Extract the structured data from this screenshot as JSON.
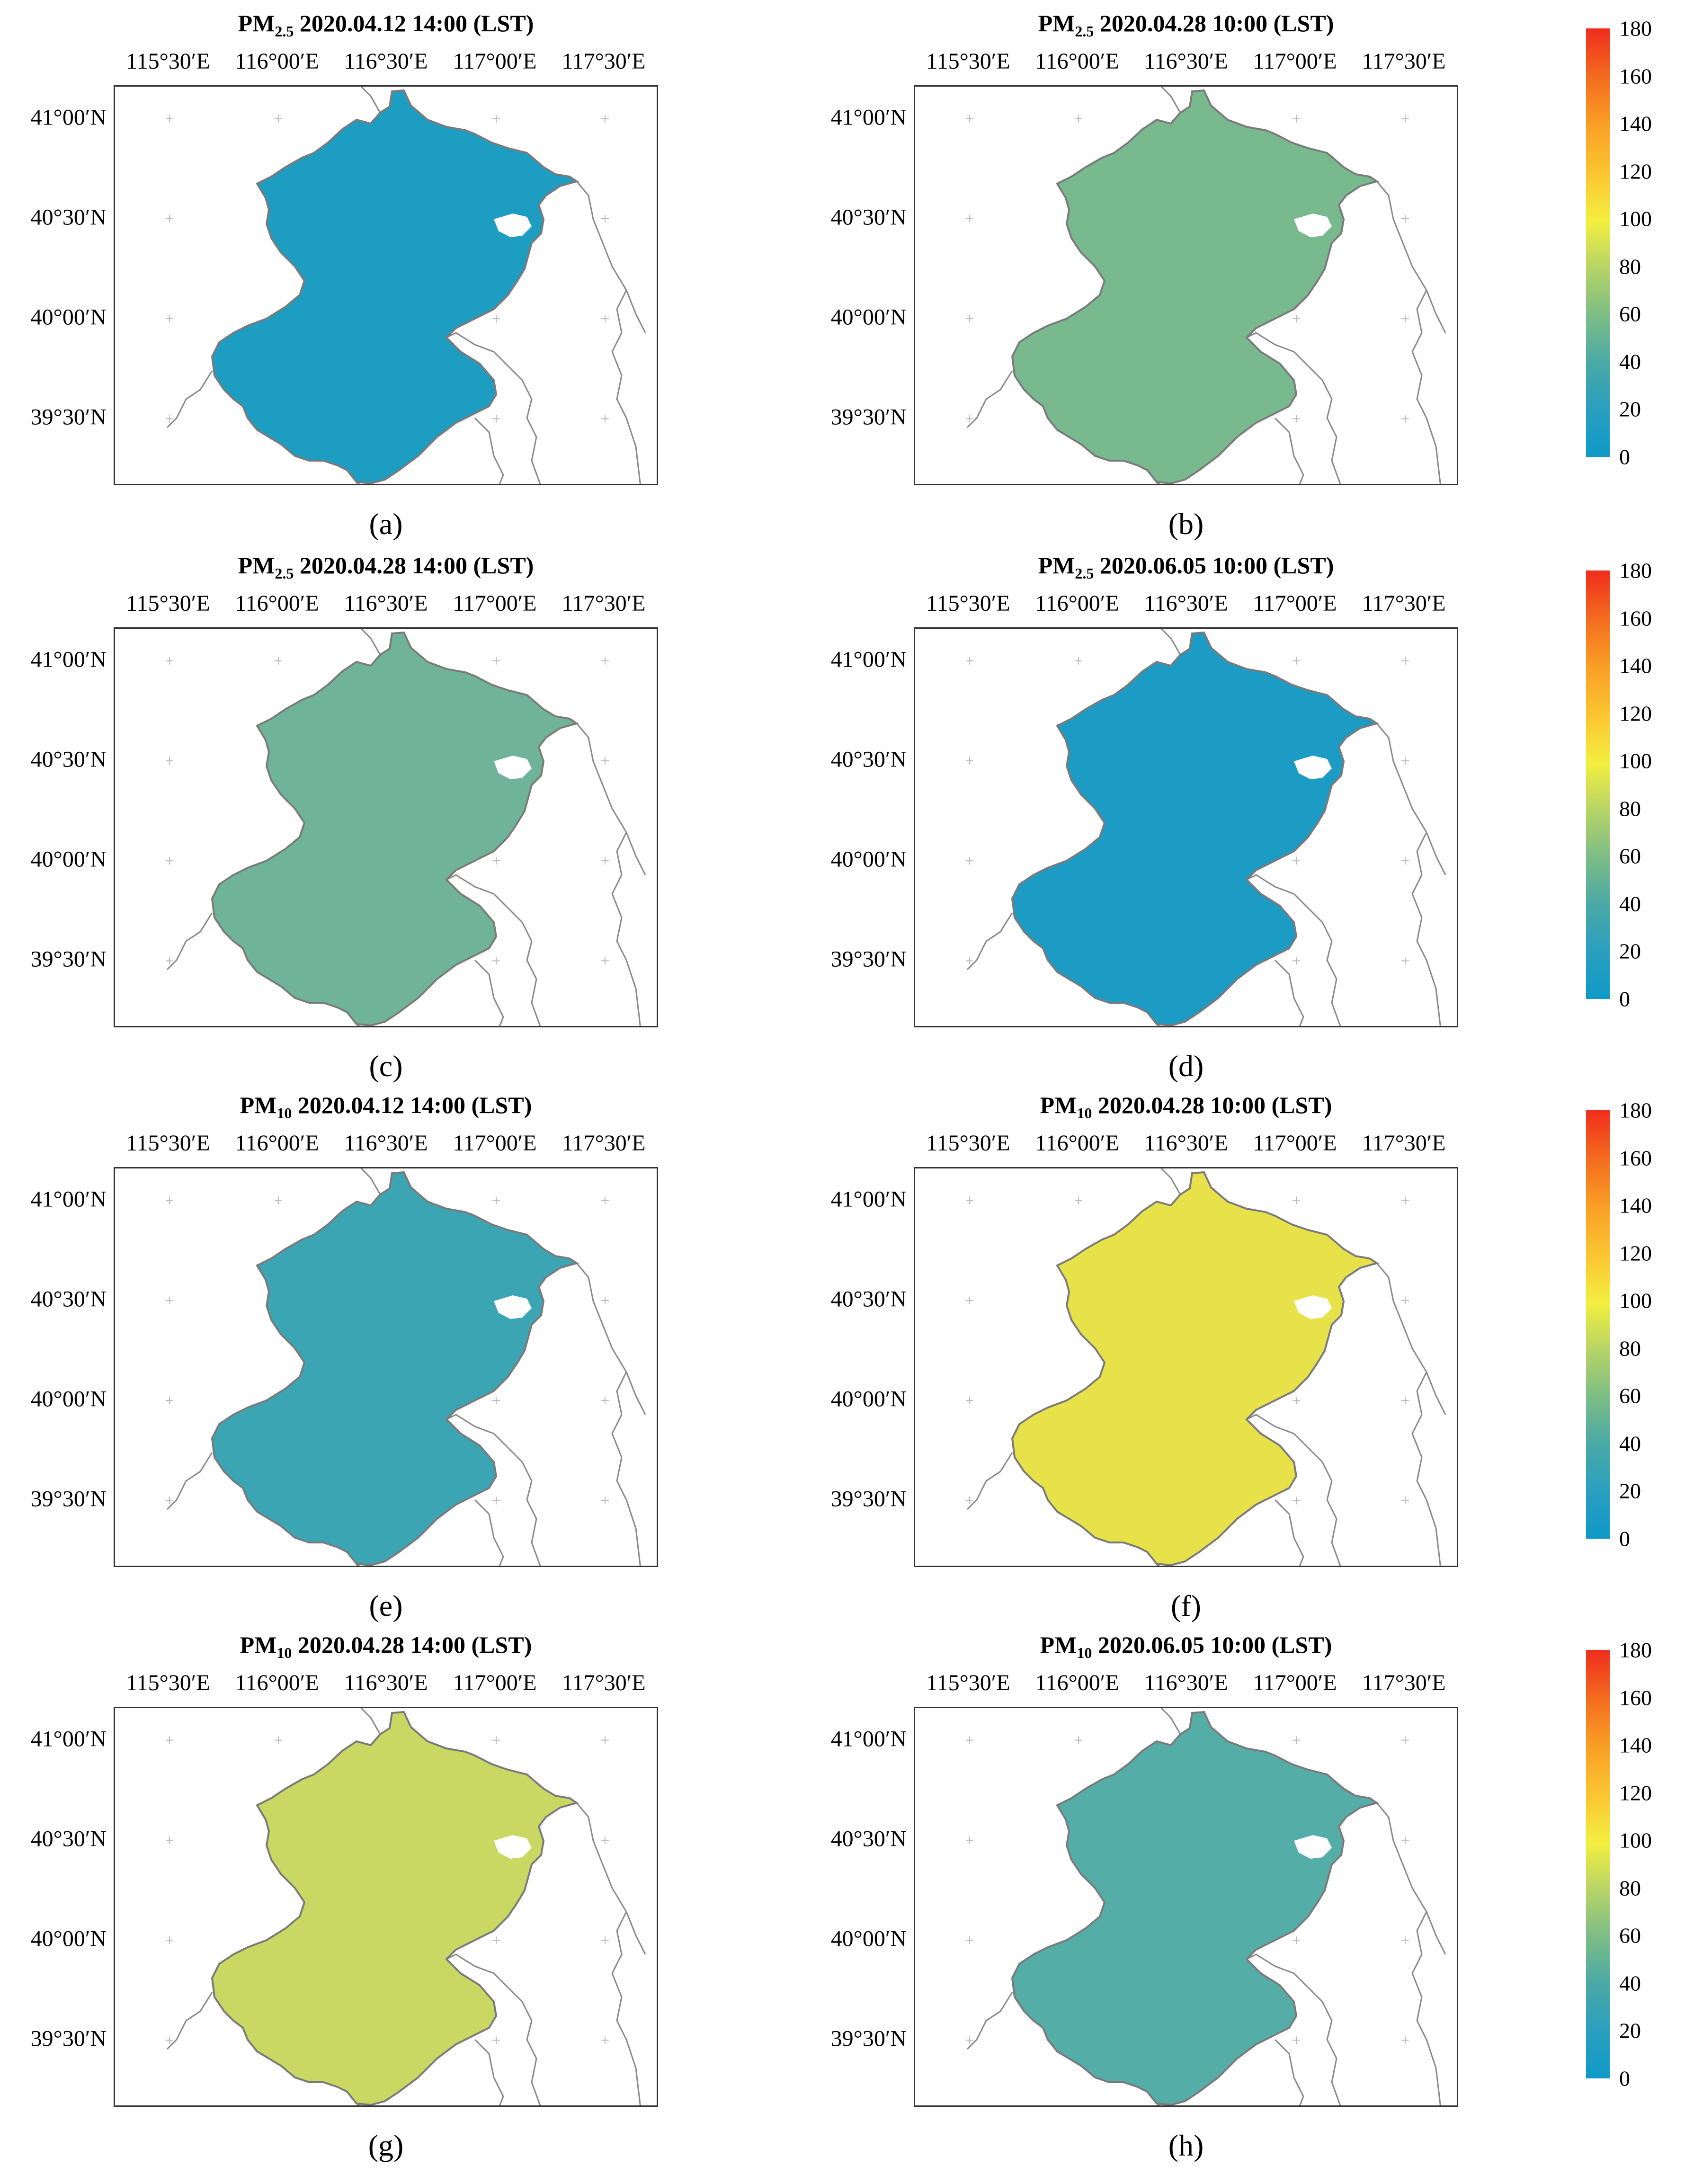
{
  "figure": {
    "lon_labels": [
      "115°30′E",
      "116°00′E",
      "116°30′E",
      "117°00′E",
      "117°30′E"
    ],
    "lat_labels": [
      "41°00′N",
      "40°30′N",
      "40°00′N",
      "39°30′N"
    ],
    "colorbar_ticks": [
      "180",
      "160",
      "140",
      "120",
      "100",
      "80",
      "60",
      "40",
      "20",
      "0"
    ],
    "colorbar_colors": {
      "low": "#0f99c8",
      "mid_low": "#7cbd86",
      "mid": "#f3ef3f",
      "mid_high": "#f9a126",
      "high": "#ef2d1d"
    }
  },
  "panels": [
    {
      "species": "PM",
      "sub": "2.5",
      "datetime": "2020.04.12  14:00 (LST)",
      "letter": "(a)",
      "fill": "#1e9dc2"
    },
    {
      "species": "PM",
      "sub": "2.5",
      "datetime": "2020.04.28  10:00 (LST)",
      "letter": "(b)",
      "fill": "#79b98e"
    },
    {
      "species": "PM",
      "sub": "2.5",
      "datetime": "2020.04.28  14:00 (LST)",
      "letter": "(c)",
      "fill": "#6fb49a"
    },
    {
      "species": "PM",
      "sub": "2.5",
      "datetime": "2020.06.05  10:00 (LST)",
      "letter": "(d)",
      "fill": "#1c9cc4"
    },
    {
      "species": "PM",
      "sub": "10",
      "datetime": "2020.04.12  14:00 (LST)",
      "letter": "(e)",
      "fill": "#3ba5b3"
    },
    {
      "species": "PM",
      "sub": "10",
      "datetime": "2020.04.28  10:00 (LST)",
      "letter": "(f)",
      "fill": "#e7e14a"
    },
    {
      "species": "PM",
      "sub": "10",
      "datetime": "2020.04.28  14:00 (LST)",
      "letter": "(g)",
      "fill": "#c9d862"
    },
    {
      "species": "PM",
      "sub": "10",
      "datetime": "2020.06.05  10:00 (LST)",
      "letter": "(h)",
      "fill": "#55ada8"
    }
  ]
}
